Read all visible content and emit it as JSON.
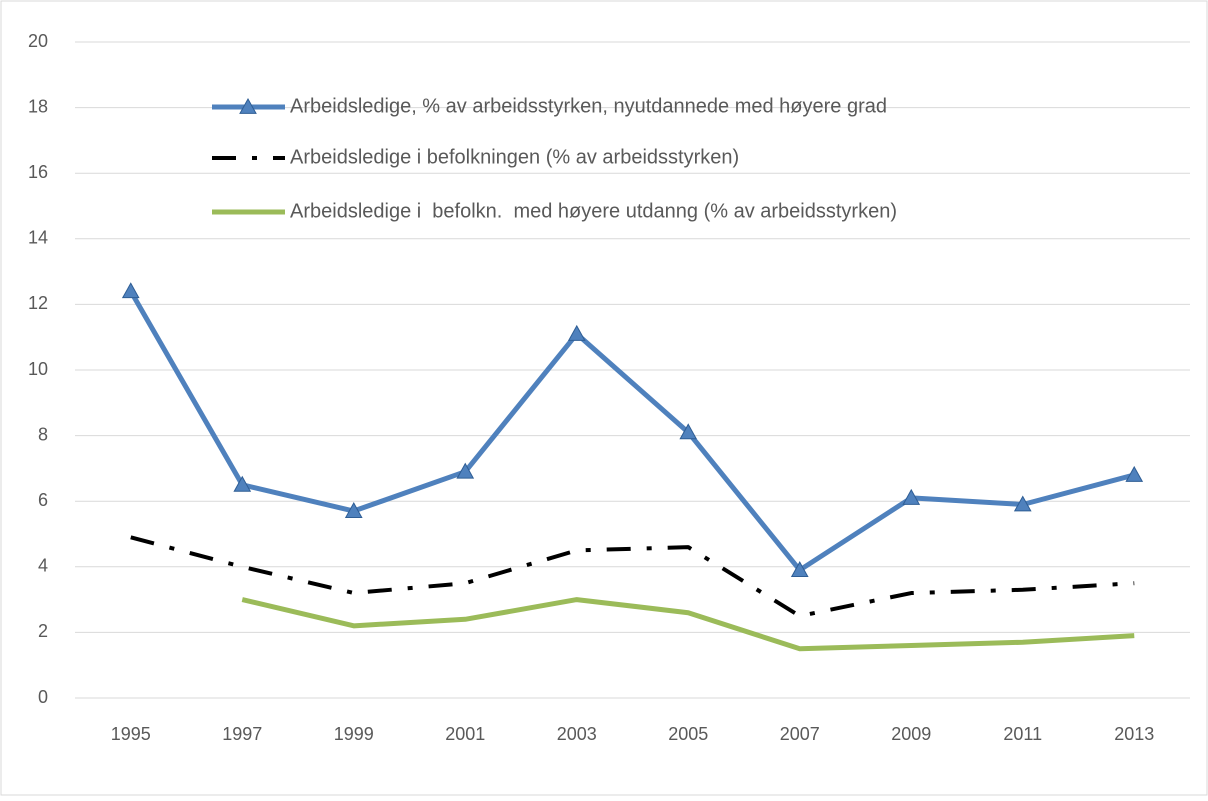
{
  "chart_data": {
    "type": "line",
    "categories": [
      "1995",
      "1997",
      "1999",
      "2001",
      "2003",
      "2005",
      "2007",
      "2009",
      "2011",
      "2013"
    ],
    "series": [
      {
        "name": "Arbeidsledige, % av arbeidsstyrken, nyutdannede med høyere grad",
        "color": "#4f81bd",
        "marker": "triangle",
        "dash": "solid",
        "values": [
          12.4,
          6.5,
          5.7,
          6.9,
          11.1,
          8.1,
          3.9,
          6.1,
          5.9,
          6.8
        ]
      },
      {
        "name": "Arbeidsledige i befolkningen (% av arbeidsstyrken)",
        "color": "#000000",
        "marker": "none",
        "dash": "dash-dot",
        "values": [
          4.9,
          4.0,
          3.2,
          3.5,
          4.5,
          4.6,
          2.5,
          3.2,
          3.3,
          3.5
        ]
      },
      {
        "name": "Arbeidsledige i  befolkn.  med høyere utdanng (% av arbeidsstyrken)",
        "color": "#9bbb59",
        "marker": "none",
        "dash": "solid",
        "values": [
          null,
          3.0,
          2.2,
          2.4,
          3.0,
          2.6,
          1.5,
          1.6,
          1.7,
          1.9
        ]
      }
    ],
    "ylim": [
      0,
      20
    ],
    "yticks": [
      0,
      2,
      4,
      6,
      8,
      10,
      12,
      14,
      16,
      18,
      20
    ],
    "grid": true,
    "legend": "top"
  }
}
